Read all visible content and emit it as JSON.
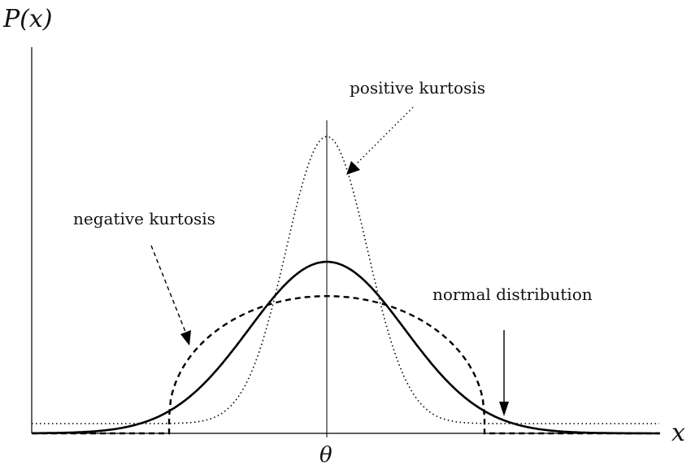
{
  "axes": {
    "y_label": "P(x)",
    "x_label": "x",
    "center_label": "θ"
  },
  "annotations": {
    "positive": "positive kurtosis",
    "negative": "negative kurtosis",
    "normal": "normal distribution"
  },
  "curves": {
    "normal": {
      "style": "solid",
      "color": "#000000",
      "relative_peak": 1.0
    },
    "negative_kurtosis": {
      "style": "dashed",
      "color": "#000000",
      "relative_peak": 0.8
    },
    "positive_kurtosis": {
      "style": "dotted",
      "color": "#000000",
      "relative_peak": 1.73
    }
  }
}
